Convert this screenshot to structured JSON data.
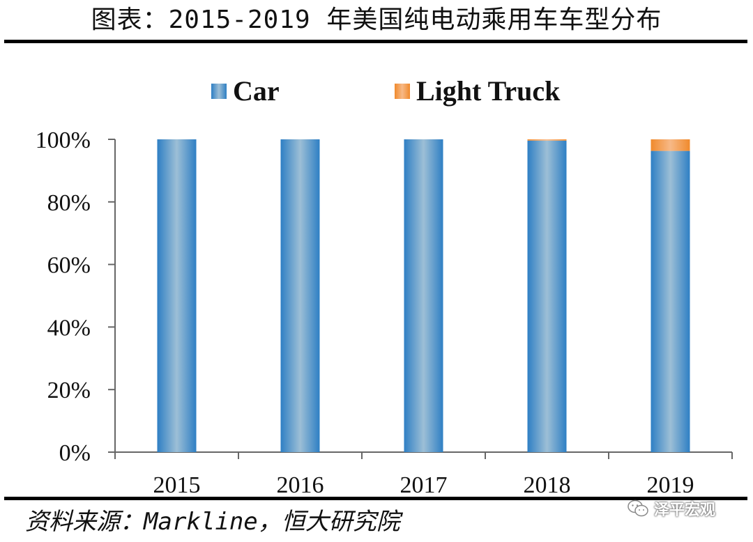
{
  "title": "图表：2015-2019 年美国纯电动乘用车车型分布",
  "source": "资料来源：Markline，恒大研究院",
  "watermark": {
    "text": "泽平宏观",
    "icon": "wechat-icon"
  },
  "colors": {
    "car": "#2e7fc4",
    "car_light": "#9dbfd6",
    "light_truck": "#f08a2c",
    "light_truck_light": "#f7b987"
  },
  "chart_data": {
    "type": "bar",
    "stacked": true,
    "categories": [
      "2015",
      "2016",
      "2017",
      "2018",
      "2019"
    ],
    "series": [
      {
        "name": "Car",
        "values": [
          100,
          100,
          100,
          99.6,
          96.3
        ]
      },
      {
        "name": "Light Truck",
        "values": [
          0,
          0,
          0,
          0.4,
          3.7
        ]
      }
    ],
    "yticks": [
      "0%",
      "20%",
      "40%",
      "60%",
      "80%",
      "100%"
    ],
    "ylim": [
      0,
      100
    ],
    "legend": "top-center",
    "grid": false
  }
}
